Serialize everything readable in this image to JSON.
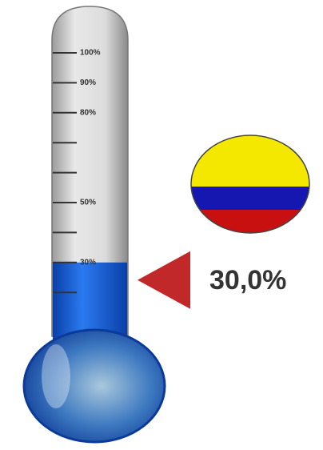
{
  "chart_data": {
    "type": "thermometer",
    "values": [
      30
    ],
    "value_labels": [
      "30,0%"
    ],
    "color": "#1560d8",
    "ylim": [
      0,
      100
    ],
    "yticks": [
      {
        "value": 100,
        "label": "100%"
      },
      {
        "value": 90,
        "label": "90%"
      },
      {
        "value": 80,
        "label": "80%"
      },
      {
        "value": 50,
        "label": "50%"
      },
      {
        "value": 30,
        "label": "30%"
      }
    ],
    "minor_yticks": [
      70,
      60,
      40,
      20
    ]
  }
}
